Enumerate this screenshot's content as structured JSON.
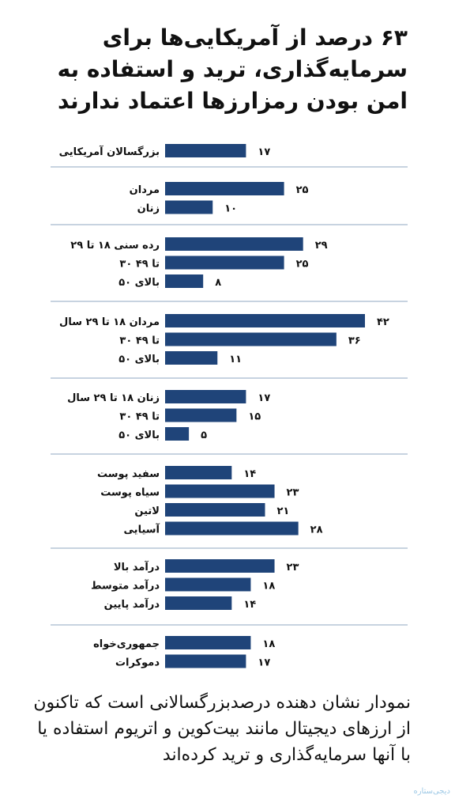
{
  "title": "۶۳ درصد از آمریکایی‌ها برای سرمایه‌گذاری، ترید و استفاده به امن بودن رمزارزها اعتماد ندارند",
  "caption": "نمودار نشان دهنده درصدبزرگسالانی است که تاکنون از ارزهای دیجیتال مانند بیت‌کوین و اتریوم استفاده یا با آنها سرمایه‌گذاری و ترید کرده‌اند",
  "logo_text": "دیجی‌ستاره",
  "colors": {
    "bar": "#1f4479",
    "divider": "#8fa7c2",
    "text": "#111111"
  },
  "chart_data": {
    "type": "bar",
    "orientation": "horizontal",
    "xlim": [
      0,
      42
    ],
    "groups": [
      {
        "items": [
          {
            "label": "بزرگسالان آمریکایی",
            "value": 17,
            "value_label": "۱۷"
          }
        ]
      },
      {
        "items": [
          {
            "label": "مردان",
            "value": 25,
            "value_label": "۲۵"
          },
          {
            "label": "زنان",
            "value": 10,
            "value_label": "۱۰"
          }
        ]
      },
      {
        "items": [
          {
            "label": "رده سنی ۱۸ تا ۲۹",
            "value": 29,
            "value_label": "۲۹"
          },
          {
            "label": "۳۰ تا ۴۹",
            "value": 25,
            "value_label": "۲۵"
          },
          {
            "label": "بالای ۵۰",
            "value": 8,
            "value_label": "۸"
          }
        ]
      },
      {
        "items": [
          {
            "label": "مردان ۱۸ تا ۲۹ سال",
            "value": 42,
            "value_label": "۴۲"
          },
          {
            "label": "۳۰ تا ۴۹",
            "value": 36,
            "value_label": "۳۶"
          },
          {
            "label": "بالای ۵۰",
            "value": 11,
            "value_label": "۱۱"
          }
        ]
      },
      {
        "items": [
          {
            "label": "زنان ۱۸ تا ۲۹ سال",
            "value": 17,
            "value_label": "۱۷"
          },
          {
            "label": "۳۰ تا ۴۹",
            "value": 15,
            "value_label": "۱۵"
          },
          {
            "label": "بالای ۵۰",
            "value": 5,
            "value_label": "۵"
          }
        ]
      },
      {
        "items": [
          {
            "label": "سفید پوست",
            "value": 14,
            "value_label": "۱۴"
          },
          {
            "label": "سیاه پوست",
            "value": 23,
            "value_label": "۲۳"
          },
          {
            "label": "لاتین",
            "value": 21,
            "value_label": "۲۱"
          },
          {
            "label": "آسیایی",
            "value": 28,
            "value_label": "۲۸"
          }
        ]
      },
      {
        "items": [
          {
            "label": "درآمد بالا",
            "value": 23,
            "value_label": "۲۳"
          },
          {
            "label": "درآمد متوسط",
            "value": 18,
            "value_label": "۱۸"
          },
          {
            "label": "درآمد پایین",
            "value": 14,
            "value_label": "۱۴"
          }
        ]
      },
      {
        "items": [
          {
            "label": "جمهوری‌خواه",
            "value": 18,
            "value_label": "۱۸"
          },
          {
            "label": "دموکرات",
            "value": 17,
            "value_label": "۱۷"
          }
        ]
      }
    ]
  }
}
